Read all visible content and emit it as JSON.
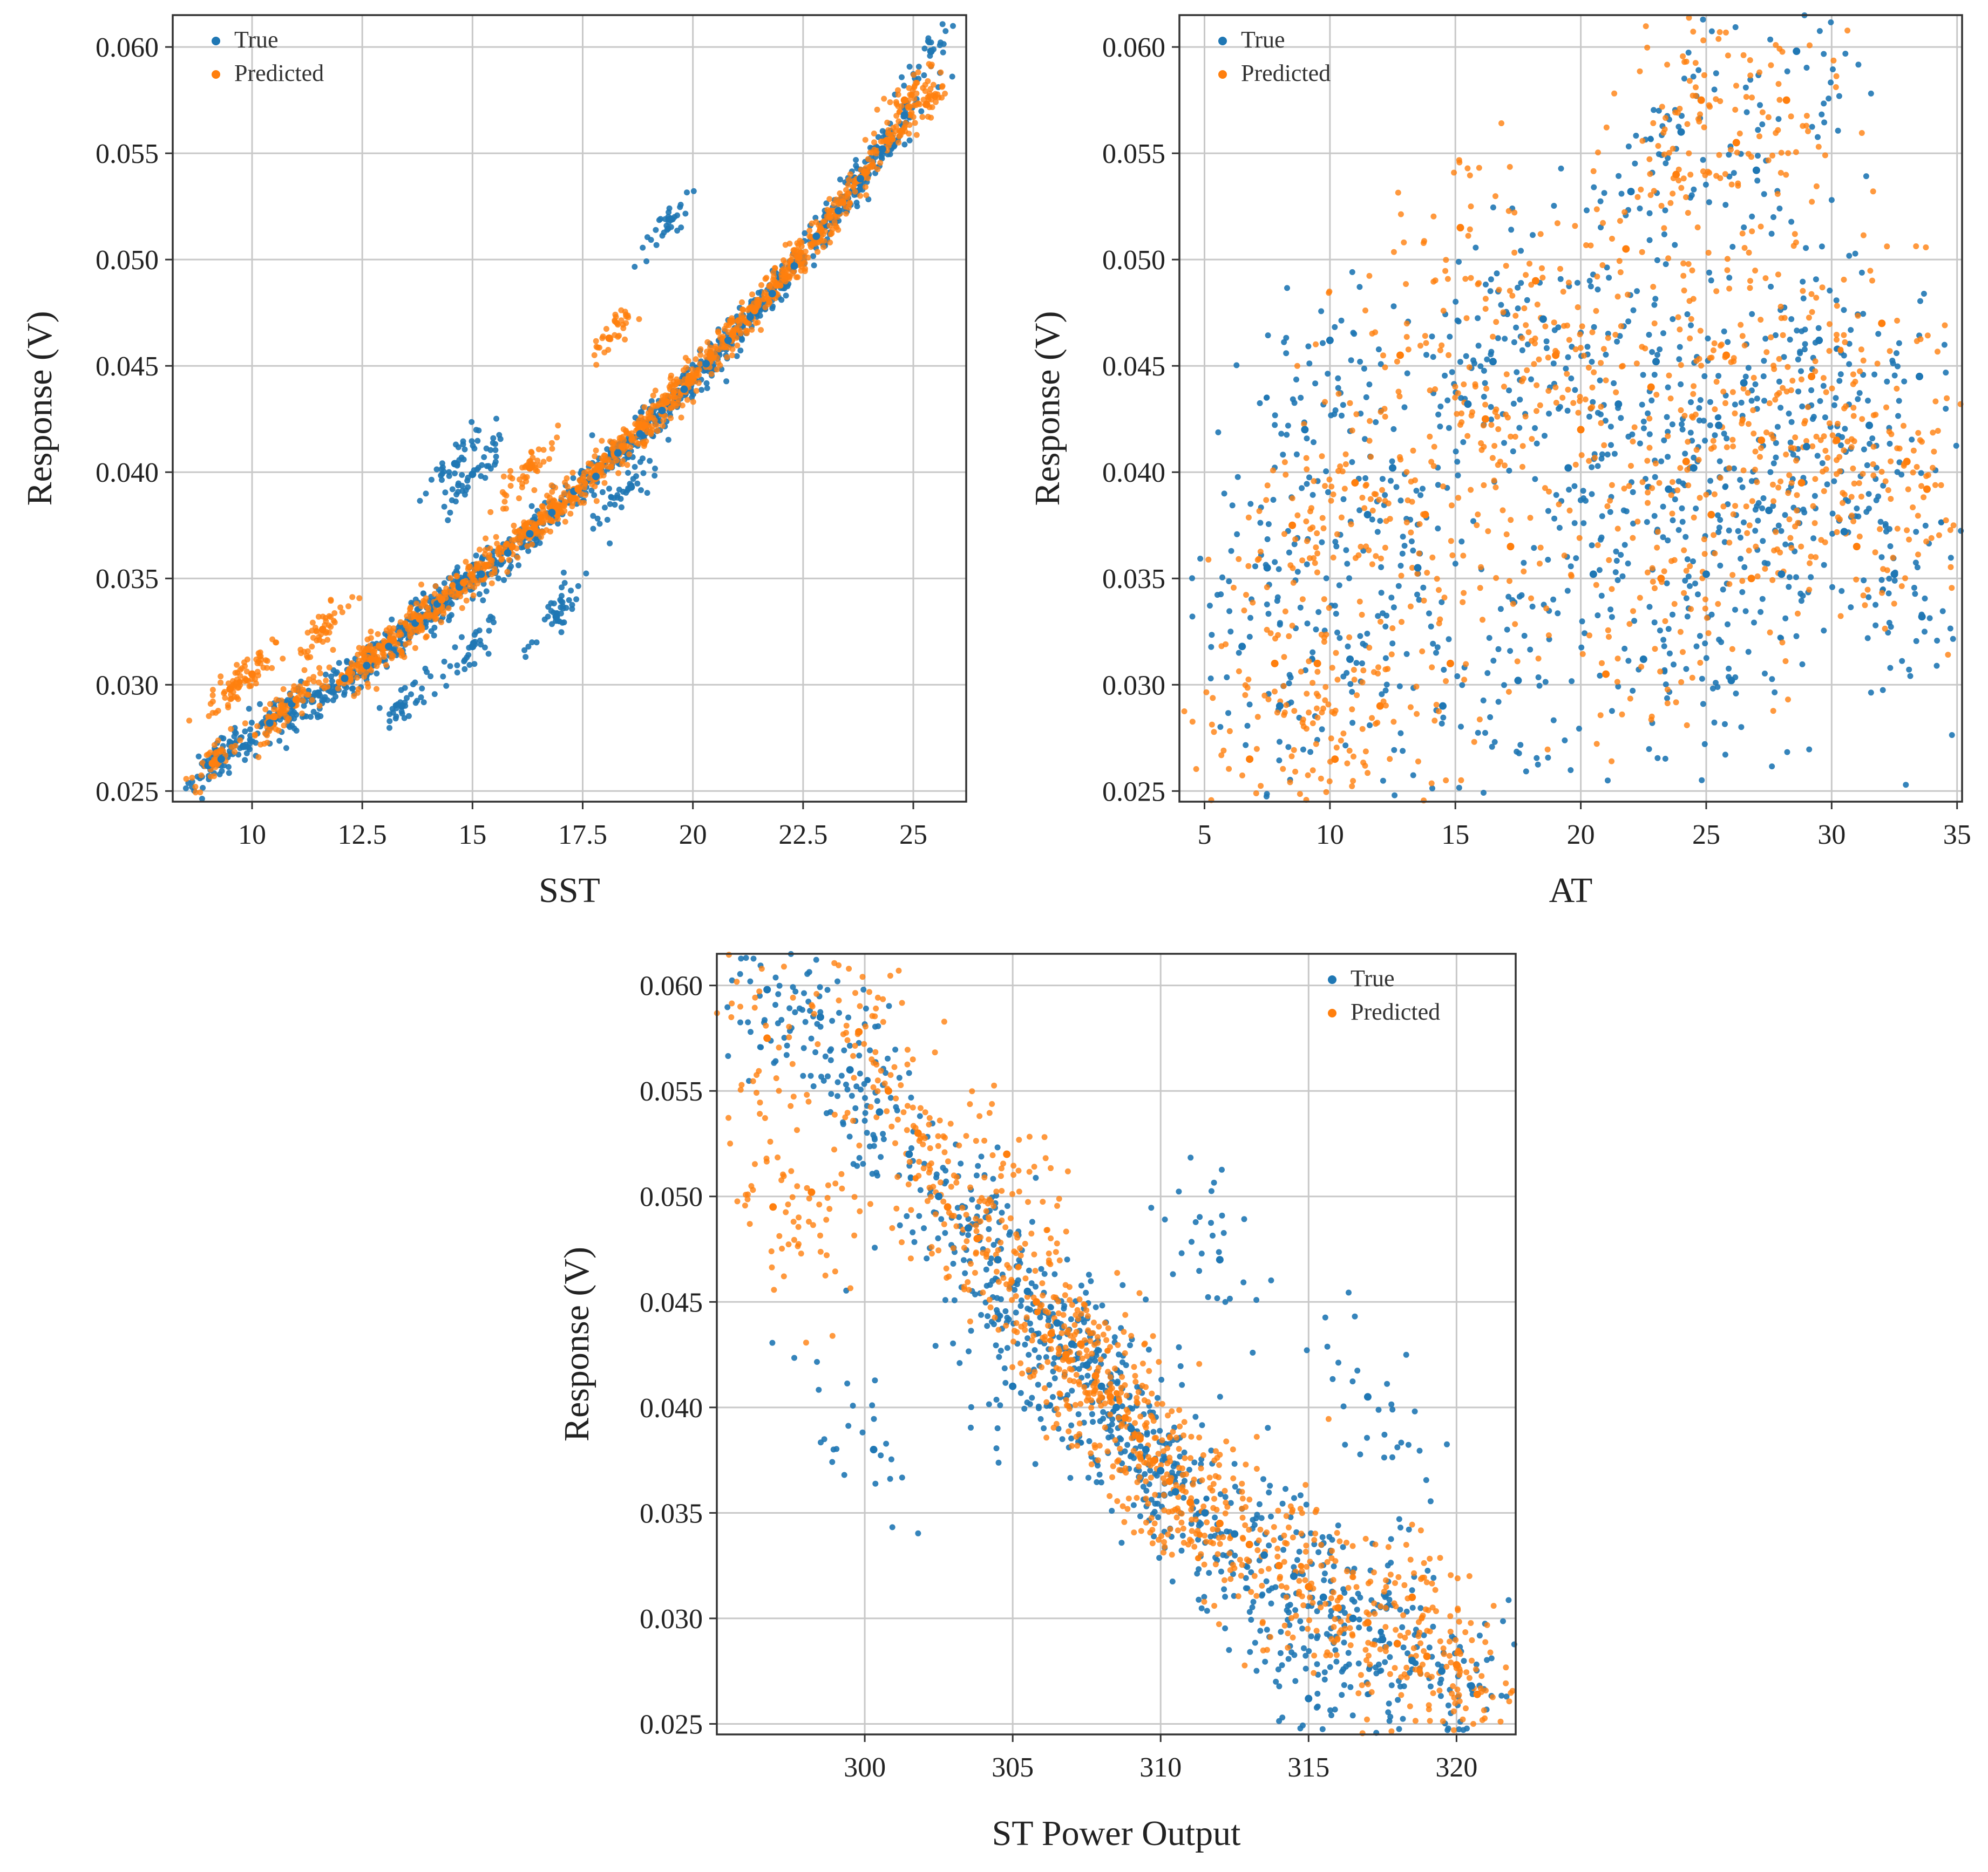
{
  "chart_data": [
    {
      "id": "sst",
      "type": "scatter",
      "title": "",
      "xlabel": "SST",
      "ylabel": "Response (V)",
      "xlim": [
        8.2,
        26.2
      ],
      "ylim": [
        0.0245,
        0.0615
      ],
      "xticks": [
        10,
        12.5,
        15,
        17.5,
        20,
        22.5,
        25
      ],
      "xtick_labels": [
        "10",
        "12.5",
        "15",
        "17.5",
        "20",
        "22.5",
        "25"
      ],
      "yticks": [
        0.025,
        0.03,
        0.035,
        0.04,
        0.045,
        0.05,
        0.055,
        0.06
      ],
      "ytick_labels": [
        "0.025",
        "0.030",
        "0.035",
        "0.040",
        "0.045",
        "0.050",
        "0.055",
        "0.060"
      ],
      "grid": true,
      "legend": {
        "position": "top-left",
        "entries": [
          "True",
          "Predicted"
        ]
      },
      "series": [
        {
          "name": "True",
          "color": "#1f77b4",
          "points": [
            [
              9.0,
              0.0262
            ],
            [
              9.3,
              0.0265
            ],
            [
              9.8,
              0.0271
            ],
            [
              10.4,
              0.0282
            ],
            [
              10.9,
              0.0291
            ],
            [
              11.5,
              0.0296
            ],
            [
              12.1,
              0.0303
            ],
            [
              12.6,
              0.0309
            ],
            [
              13.1,
              0.0318
            ],
            [
              13.7,
              0.0329
            ],
            [
              14.2,
              0.0338
            ],
            [
              14.7,
              0.0346
            ],
            [
              15.2,
              0.0352
            ],
            [
              15.8,
              0.0362
            ],
            [
              16.3,
              0.0371
            ],
            [
              16.8,
              0.0381
            ],
            [
              17.3,
              0.0391
            ],
            [
              17.8,
              0.0398
            ],
            [
              18.3,
              0.0409
            ],
            [
              18.8,
              0.0418
            ],
            [
              19.3,
              0.0429
            ],
            [
              19.8,
              0.0439
            ],
            [
              20.3,
              0.0451
            ],
            [
              20.8,
              0.0462
            ],
            [
              21.3,
              0.0473
            ],
            [
              21.8,
              0.0484
            ],
            [
              22.3,
              0.0497
            ],
            [
              22.8,
              0.0511
            ],
            [
              23.3,
              0.0523
            ],
            [
              23.8,
              0.0538
            ],
            [
              24.3,
              0.0552
            ],
            [
              24.8,
              0.0568
            ],
            [
              25.4,
              0.0598
            ],
            [
              14.6,
              0.0404
            ],
            [
              15.0,
              0.0399
            ],
            [
              19.5,
              0.0519
            ],
            [
              16.9,
              0.0332
            ],
            [
              18.6,
              0.0393
            ],
            [
              15.0,
              0.0318
            ],
            [
              13.4,
              0.029
            ]
          ]
        },
        {
          "name": "Predicted",
          "color": "#ff7f0e",
          "points": [
            [
              9.1,
              0.0263
            ],
            [
              9.5,
              0.0298
            ],
            [
              10.0,
              0.0305
            ],
            [
              10.5,
              0.0285
            ],
            [
              11.0,
              0.0293
            ],
            [
              11.6,
              0.0326
            ],
            [
              12.2,
              0.0306
            ],
            [
              12.7,
              0.0312
            ],
            [
              13.2,
              0.0321
            ],
            [
              13.8,
              0.0331
            ],
            [
              14.3,
              0.034
            ],
            [
              14.8,
              0.0348
            ],
            [
              15.3,
              0.0356
            ],
            [
              15.9,
              0.0365
            ],
            [
              16.4,
              0.0374
            ],
            [
              16.9,
              0.0384
            ],
            [
              17.4,
              0.0392
            ],
            [
              17.9,
              0.0403
            ],
            [
              18.4,
              0.0412
            ],
            [
              18.9,
              0.0422
            ],
            [
              19.4,
              0.0433
            ],
            [
              19.9,
              0.0442
            ],
            [
              20.4,
              0.0455
            ],
            [
              20.9,
              0.0465
            ],
            [
              21.4,
              0.0476
            ],
            [
              21.9,
              0.0488
            ],
            [
              22.4,
              0.0501
            ],
            [
              22.9,
              0.0514
            ],
            [
              23.4,
              0.0527
            ],
            [
              23.9,
              0.0541
            ],
            [
              24.4,
              0.0556
            ],
            [
              24.8,
              0.0575
            ],
            [
              25.3,
              0.0573
            ],
            [
              18.1,
              0.0463
            ],
            [
              16.3,
              0.0402
            ]
          ]
        }
      ]
    },
    {
      "id": "at",
      "type": "scatter",
      "title": "",
      "xlabel": "AT",
      "ylabel": "Response (V)",
      "xlim": [
        4.0,
        35.2
      ],
      "ylim": [
        0.0245,
        0.0615
      ],
      "xticks": [
        5,
        10,
        15,
        20,
        25,
        30,
        35
      ],
      "xtick_labels": [
        "5",
        "10",
        "15",
        "20",
        "25",
        "30",
        "35"
      ],
      "yticks": [
        0.025,
        0.03,
        0.035,
        0.04,
        0.045,
        0.05,
        0.055,
        0.06
      ],
      "ytick_labels": [
        "0.025",
        "0.030",
        "0.035",
        "0.040",
        "0.045",
        "0.050",
        "0.055",
        "0.060"
      ],
      "grid": true,
      "legend": {
        "position": "top-left",
        "entries": [
          "True",
          "Predicted"
        ]
      },
      "series": [
        {
          "name": "True",
          "color": "#1f77b4",
          "points": [
            [
              6.5,
              0.0318
            ],
            [
              7.5,
              0.0355
            ],
            [
              8.0,
              0.029
            ],
            [
              9.0,
              0.042
            ],
            [
              10.0,
              0.0462
            ],
            [
              10.8,
              0.0312
            ],
            [
              11.5,
              0.038
            ],
            [
              12.5,
              0.0402
            ],
            [
              13.5,
              0.0355
            ],
            [
              14.5,
              0.029
            ],
            [
              15.5,
              0.0432
            ],
            [
              16.5,
              0.0452
            ],
            [
              17.5,
              0.0302
            ],
            [
              18.5,
              0.0472
            ],
            [
              19.5,
              0.0402
            ],
            [
              20.5,
              0.0352
            ],
            [
              21.5,
              0.0432
            ],
            [
              22.0,
              0.0532
            ],
            [
              22.5,
              0.0312
            ],
            [
              23.0,
              0.0452
            ],
            [
              23.5,
              0.0392
            ],
            [
              24.0,
              0.056
            ],
            [
              24.5,
              0.0402
            ],
            [
              25.0,
              0.0352
            ],
            [
              25.5,
              0.0422
            ],
            [
              26.0,
              0.0302
            ],
            [
              26.5,
              0.0442
            ],
            [
              27.0,
              0.0542
            ],
            [
              27.5,
              0.0382
            ],
            [
              28.0,
              0.0352
            ],
            [
              28.6,
              0.0598
            ],
            [
              29.0,
              0.0412
            ],
            [
              29.5,
              0.0462
            ],
            [
              30.5,
              0.0372
            ],
            [
              31.5,
              0.0422
            ],
            [
              32.5,
              0.0352
            ],
            [
              33.6,
              0.0332
            ],
            [
              33.5,
              0.0445
            ]
          ]
        },
        {
          "name": "Predicted",
          "color": "#ff7f0e",
          "points": [
            [
              6.8,
              0.0265
            ],
            [
              7.8,
              0.031
            ],
            [
              8.5,
              0.0375
            ],
            [
              9.5,
              0.031
            ],
            [
              10.2,
              0.0265
            ],
            [
              11.0,
              0.0395
            ],
            [
              12.0,
              0.029
            ],
            [
              12.8,
              0.0455
            ],
            [
              13.8,
              0.038
            ],
            [
              14.8,
              0.031
            ],
            [
              15.2,
              0.0515
            ],
            [
              16.2,
              0.0425
            ],
            [
              17.2,
              0.0365
            ],
            [
              18.2,
              0.049
            ],
            [
              19.0,
              0.0455
            ],
            [
              20.0,
              0.042
            ],
            [
              21.0,
              0.0305
            ],
            [
              21.8,
              0.0505
            ],
            [
              22.8,
              0.044
            ],
            [
              23.2,
              0.035
            ],
            [
              23.8,
              0.054
            ],
            [
              24.2,
              0.0405
            ],
            [
              24.8,
              0.0575
            ],
            [
              25.2,
              0.038
            ],
            [
              25.8,
              0.0455
            ],
            [
              26.2,
              0.0555
            ],
            [
              26.8,
              0.035
            ],
            [
              27.2,
              0.0415
            ],
            [
              28.2,
              0.0575
            ],
            [
              28.8,
              0.0395
            ],
            [
              29.2,
              0.0445
            ],
            [
              30.2,
              0.0415
            ],
            [
              31.0,
              0.0365
            ],
            [
              32.0,
              0.047
            ],
            [
              33.0,
              0.0405
            ],
            [
              33.8,
              0.0392
            ]
          ]
        }
      ]
    },
    {
      "id": "st",
      "type": "scatter",
      "title": "",
      "xlabel": "ST Power Output",
      "ylabel": "Response (V)",
      "xlim": [
        295.0,
        322.0
      ],
      "ylim": [
        0.0245,
        0.0615
      ],
      "xticks": [
        300,
        305,
        310,
        315,
        320
      ],
      "xtick_labels": [
        "300",
        "305",
        "310",
        "315",
        "320"
      ],
      "yticks": [
        0.025,
        0.03,
        0.035,
        0.04,
        0.045,
        0.05,
        0.055,
        0.06
      ],
      "ytick_labels": [
        "0.025",
        "0.030",
        "0.035",
        "0.040",
        "0.045",
        "0.050",
        "0.055",
        "0.060"
      ],
      "grid": true,
      "legend": {
        "position": "top-right",
        "entries": [
          "True",
          "Predicted"
        ]
      },
      "series": [
        {
          "name": "True",
          "color": "#1f77b4",
          "points": [
            [
              296.7,
              0.0598
            ],
            [
              298.5,
              0.0585
            ],
            [
              299.5,
              0.056
            ],
            [
              300.5,
              0.054
            ],
            [
              301.5,
              0.052
            ],
            [
              302.5,
              0.05
            ],
            [
              303.5,
              0.0485
            ],
            [
              304.5,
              0.047
            ],
            [
              305.5,
              0.0455
            ],
            [
              306.5,
              0.044
            ],
            [
              307.0,
              0.043
            ],
            [
              307.5,
              0.042
            ],
            [
              308.0,
              0.041
            ],
            [
              308.5,
              0.04
            ],
            [
              309.0,
              0.039
            ],
            [
              309.5,
              0.038
            ],
            [
              310.0,
              0.037
            ],
            [
              310.5,
              0.036
            ],
            [
              311.5,
              0.035
            ],
            [
              312.5,
              0.034
            ],
            [
              313.5,
              0.033
            ],
            [
              314.5,
              0.032
            ],
            [
              315.5,
              0.031
            ],
            [
              316.5,
              0.03
            ],
            [
              317.5,
              0.029
            ],
            [
              318.5,
              0.028
            ],
            [
              319.5,
              0.0275
            ],
            [
              320.5,
              0.0268
            ],
            [
              300.3,
              0.038
            ],
            [
              305.0,
              0.041
            ],
            [
              312.0,
              0.047
            ],
            [
              315.0,
              0.0262
            ],
            [
              317.0,
              0.0405
            ]
          ]
        },
        {
          "name": "Predicted",
          "color": "#ff7f0e",
          "points": [
            [
              296.7,
              0.0575
            ],
            [
              296.9,
              0.0495
            ],
            [
              298.2,
              0.0502
            ],
            [
              299.8,
              0.0578
            ],
            [
              300.8,
              0.055
            ],
            [
              301.8,
              0.053
            ],
            [
              302.8,
              0.0495
            ],
            [
              303.8,
              0.048
            ],
            [
              304.8,
              0.052
            ],
            [
              305.8,
              0.045
            ],
            [
              306.3,
              0.0435
            ],
            [
              306.8,
              0.0425
            ],
            [
              307.3,
              0.043
            ],
            [
              307.8,
              0.0415
            ],
            [
              308.3,
              0.0405
            ],
            [
              308.8,
              0.0395
            ],
            [
              309.3,
              0.0385
            ],
            [
              309.8,
              0.0375
            ],
            [
              310.3,
              0.0365
            ],
            [
              311.0,
              0.0355
            ],
            [
              312.0,
              0.0345
            ],
            [
              313.0,
              0.0335
            ],
            [
              314.0,
              0.0325
            ],
            [
              315.0,
              0.0315
            ],
            [
              316.0,
              0.0305
            ],
            [
              317.0,
              0.0298
            ],
            [
              318.0,
              0.0288
            ],
            [
              319.0,
              0.0282
            ],
            [
              320.0,
              0.0278
            ],
            [
              320.7,
              0.0264
            ],
            [
              318.5,
              0.031
            ]
          ]
        }
      ]
    }
  ]
}
